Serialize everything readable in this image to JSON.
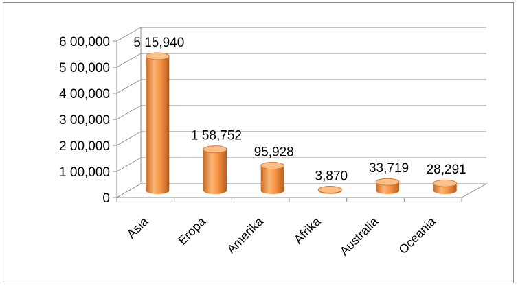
{
  "chart_data": {
    "type": "bar",
    "style": "3d-cylinder",
    "categories": [
      "Asia",
      "Eropa",
      "Amerika",
      "Afrika",
      "Australia",
      "Oceania"
    ],
    "values": [
      515940,
      158752,
      95928,
      3870,
      33719,
      28291
    ],
    "data_labels": [
      "5 15,940",
      "1 58,752",
      "95,928",
      "3,870",
      "33,719",
      "28,291"
    ],
    "ylim": [
      0,
      600000
    ],
    "yticks": [
      0,
      100000,
      200000,
      300000,
      400000,
      500000,
      600000
    ],
    "ytick_labels": [
      "0",
      "1 00,000",
      "2 00,000",
      "3 00,000",
      "4 00,000",
      "5 00,000",
      "6 00,000"
    ],
    "grid": true,
    "colors": {
      "bar": "#f79646",
      "bar_dark": "#c0652a",
      "bar_light": "#fbc08a",
      "grid": "#8c8c8c",
      "watermark": "#f2c9c9"
    }
  }
}
